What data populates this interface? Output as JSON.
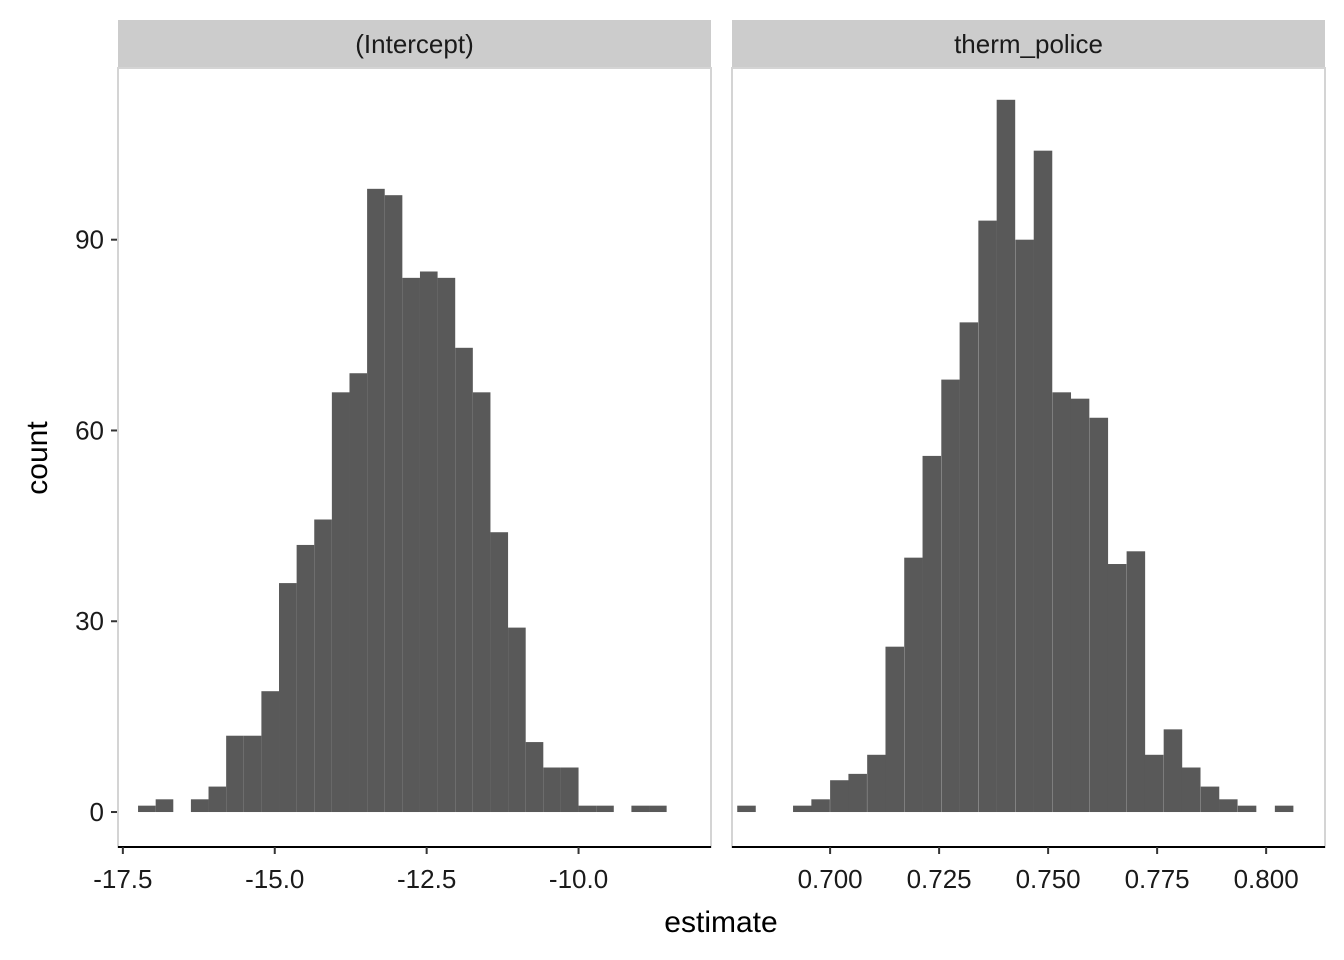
{
  "chart_data": {
    "type": "histogram",
    "xlabel": "estimate",
    "ylabel": "count",
    "ylim": [
      -5.5,
      117
    ],
    "yticks": [
      0,
      30,
      60,
      90
    ],
    "grid": false,
    "bar_color": "#595959",
    "strip_color": "#cccccc",
    "facets": [
      {
        "strip_label": "(Intercept)",
        "xlim": [
          -17.58,
          -7.82
        ],
        "xticks": [
          -17.5,
          -15.0,
          -12.5,
          -10.0
        ],
        "xtick_labels": [
          "-17.5",
          "-15.0",
          "-12.5",
          "-10.0"
        ],
        "bin_width": 0.29,
        "bins": [
          {
            "x0": -17.25,
            "count": 1
          },
          {
            "x0": -16.96,
            "count": 2
          },
          {
            "x0": -16.67,
            "count": 0
          },
          {
            "x0": -16.38,
            "count": 2
          },
          {
            "x0": -16.09,
            "count": 4
          },
          {
            "x0": -15.8,
            "count": 12
          },
          {
            "x0": -15.51,
            "count": 12
          },
          {
            "x0": -15.22,
            "count": 19
          },
          {
            "x0": -14.93,
            "count": 36
          },
          {
            "x0": -14.64,
            "count": 42
          },
          {
            "x0": -14.35,
            "count": 46
          },
          {
            "x0": -14.06,
            "count": 66
          },
          {
            "x0": -13.77,
            "count": 69
          },
          {
            "x0": -13.48,
            "count": 98
          },
          {
            "x0": -13.19,
            "count": 97
          },
          {
            "x0": -12.9,
            "count": 84
          },
          {
            "x0": -12.61,
            "count": 85
          },
          {
            "x0": -12.32,
            "count": 84
          },
          {
            "x0": -12.03,
            "count": 73
          },
          {
            "x0": -11.74,
            "count": 66
          },
          {
            "x0": -11.45,
            "count": 44
          },
          {
            "x0": -11.16,
            "count": 29
          },
          {
            "x0": -10.87,
            "count": 11
          },
          {
            "x0": -10.58,
            "count": 7
          },
          {
            "x0": -10.29,
            "count": 7
          },
          {
            "x0": -10.0,
            "count": 1
          },
          {
            "x0": -9.71,
            "count": 1
          },
          {
            "x0": -9.42,
            "count": 0
          },
          {
            "x0": -9.13,
            "count": 1
          },
          {
            "x0": -8.84,
            "count": 1
          }
        ]
      },
      {
        "strip_label": "therm_police",
        "xlim": [
          0.6775,
          0.8135
        ],
        "xticks": [
          0.7,
          0.725,
          0.75,
          0.775,
          0.8
        ],
        "xtick_labels": [
          "0.700",
          "0.725",
          "0.750",
          "0.775",
          "0.800"
        ],
        "bin_width": 0.00425,
        "bins": [
          {
            "x0": 0.6787,
            "count": 1
          },
          {
            "x0": 0.683,
            "count": 0
          },
          {
            "x0": 0.6872,
            "count": 0
          },
          {
            "x0": 0.6915,
            "count": 1
          },
          {
            "x0": 0.6957,
            "count": 2
          },
          {
            "x0": 0.7,
            "count": 5
          },
          {
            "x0": 0.7042,
            "count": 6
          },
          {
            "x0": 0.7085,
            "count": 9
          },
          {
            "x0": 0.7127,
            "count": 26
          },
          {
            "x0": 0.717,
            "count": 40
          },
          {
            "x0": 0.7212,
            "count": 56
          },
          {
            "x0": 0.7255,
            "count": 68
          },
          {
            "x0": 0.7297,
            "count": 77
          },
          {
            "x0": 0.734,
            "count": 93
          },
          {
            "x0": 0.7382,
            "count": 112
          },
          {
            "x0": 0.7425,
            "count": 90
          },
          {
            "x0": 0.7467,
            "count": 104
          },
          {
            "x0": 0.751,
            "count": 66
          },
          {
            "x0": 0.7552,
            "count": 65
          },
          {
            "x0": 0.7595,
            "count": 62
          },
          {
            "x0": 0.7637,
            "count": 39
          },
          {
            "x0": 0.768,
            "count": 41
          },
          {
            "x0": 0.7722,
            "count": 9
          },
          {
            "x0": 0.7765,
            "count": 13
          },
          {
            "x0": 0.7807,
            "count": 7
          },
          {
            "x0": 0.785,
            "count": 4
          },
          {
            "x0": 0.7892,
            "count": 2
          },
          {
            "x0": 0.7935,
            "count": 1
          },
          {
            "x0": 0.7977,
            "count": 0
          },
          {
            "x0": 0.802,
            "count": 1
          }
        ]
      }
    ]
  }
}
